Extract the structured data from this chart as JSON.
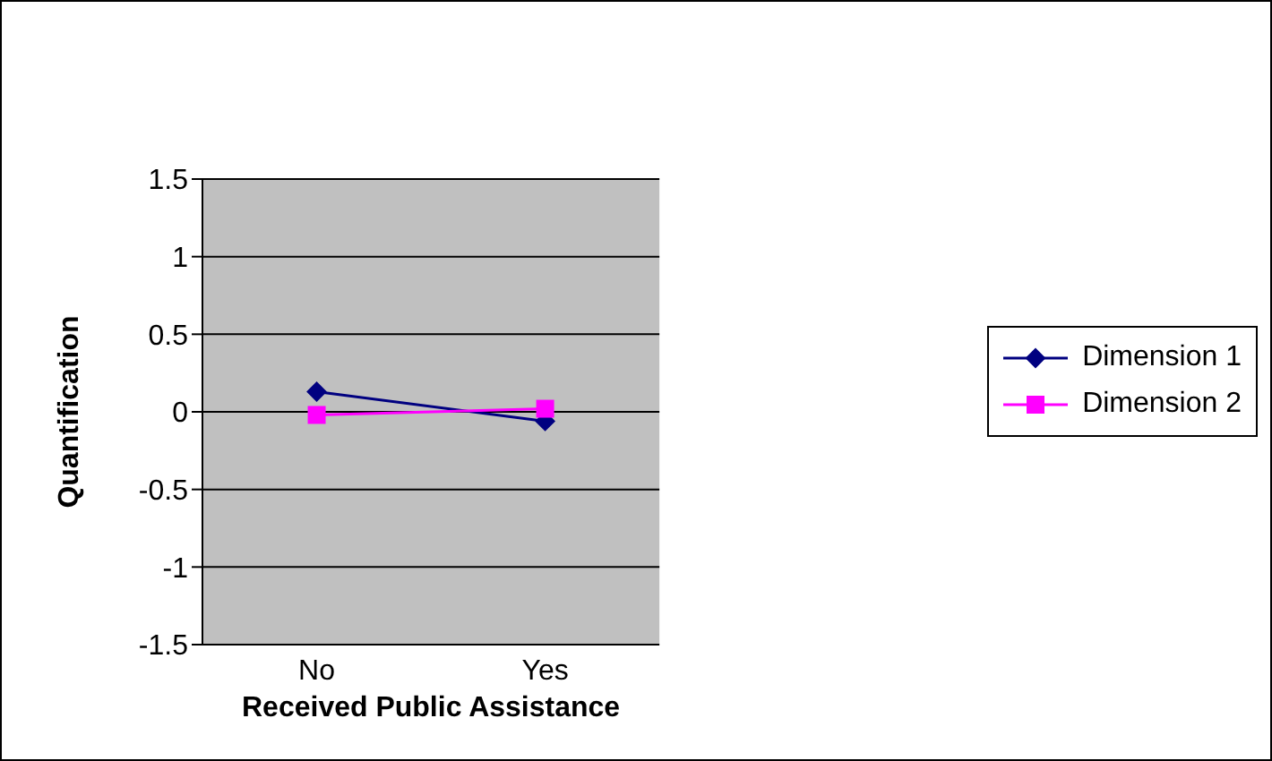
{
  "chart_data": {
    "type": "line",
    "xlabel": "Received Public Assistance",
    "ylabel": "Quantification",
    "categories": [
      "No",
      "Yes"
    ],
    "series": [
      {
        "name": "Dimension 1",
        "color": "#000080",
        "marker": "diamond",
        "values": [
          0.13,
          -0.06
        ]
      },
      {
        "name": "Dimension 2",
        "color": "#ff00ff",
        "marker": "square",
        "values": [
          -0.02,
          0.02
        ]
      }
    ],
    "ylim": [
      -1.5,
      1.5
    ],
    "yticks": [
      -1.5,
      -1,
      -0.5,
      0,
      0.5,
      1,
      1.5
    ],
    "grid": "y",
    "legend": "right"
  }
}
